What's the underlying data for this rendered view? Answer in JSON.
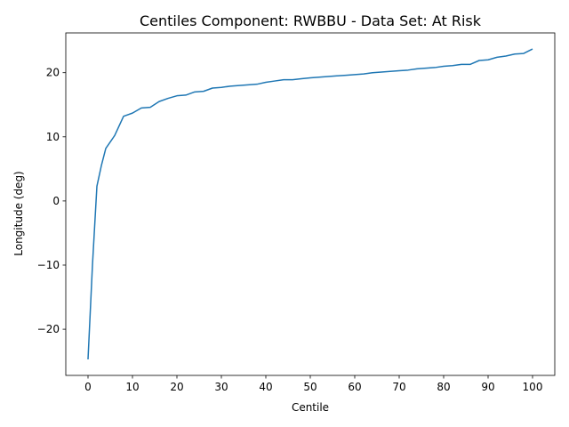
{
  "chart_data": {
    "type": "line",
    "title": "Centiles Component: RWBBU - Data Set: At Risk",
    "xlabel": "Centile",
    "ylabel": "Longitude (deg)",
    "xlim": [
      -5,
      105
    ],
    "ylim": [
      -27.2,
      26.2
    ],
    "xticks": [
      0,
      10,
      20,
      30,
      40,
      50,
      60,
      70,
      80,
      90,
      100
    ],
    "yticks": [
      -20,
      -10,
      0,
      10,
      20
    ],
    "xtick_labels": [
      "0",
      "10",
      "20",
      "30",
      "40",
      "50",
      "60",
      "70",
      "80",
      "90",
      "100"
    ],
    "ytick_labels": [
      "−20",
      "−10",
      "0",
      "10",
      "20"
    ],
    "grid": false,
    "line_color": "#1f77b4",
    "series": [
      {
        "x": [
          0,
          1,
          2,
          3,
          4,
          6,
          8,
          10,
          12,
          14,
          16,
          18,
          20,
          22,
          24,
          26,
          28,
          30,
          32,
          34,
          36,
          38,
          40,
          42,
          44,
          46,
          48,
          50,
          52,
          54,
          56,
          58,
          60,
          62,
          64,
          66,
          68,
          70,
          72,
          74,
          76,
          78,
          80,
          82,
          84,
          86,
          88,
          90,
          92,
          94,
          96,
          98,
          100
        ],
        "y": [
          -24.7,
          -10.0,
          2.3,
          5.5,
          8.2,
          10.2,
          13.2,
          13.7,
          14.5,
          14.6,
          15.5,
          16.0,
          16.4,
          16.5,
          17.0,
          17.1,
          17.6,
          17.7,
          17.9,
          18.0,
          18.1,
          18.2,
          18.5,
          18.7,
          18.9,
          18.9,
          19.05,
          19.2,
          19.3,
          19.4,
          19.5,
          19.6,
          19.7,
          19.8,
          20.0,
          20.1,
          20.2,
          20.3,
          20.4,
          20.6,
          20.7,
          20.8,
          21.0,
          21.1,
          21.3,
          21.3,
          21.9,
          22.0,
          22.4,
          22.6,
          22.9,
          23.0,
          23.7
        ]
      }
    ]
  }
}
